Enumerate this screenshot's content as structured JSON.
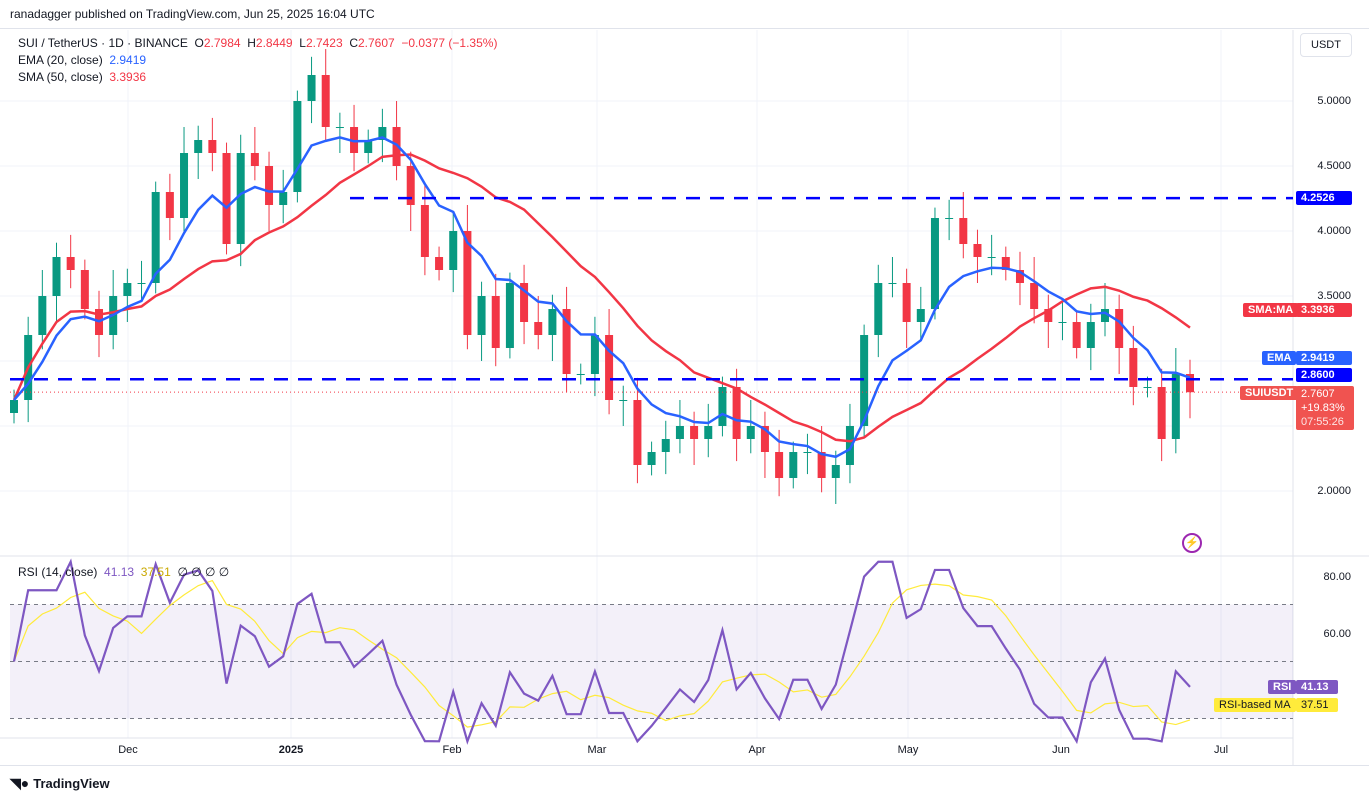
{
  "publisher": "ranadagger published on TradingView.com, Jun 25, 2025 16:04 UTC",
  "symbol": {
    "title": "SUI / TetherUS · 1D · BINANCE",
    "o_label": "O",
    "o": "2.7984",
    "h_label": "H",
    "h": "2.8449",
    "l_label": "L",
    "l": "2.7423",
    "c_label": "C",
    "c": "2.7607",
    "change": "−0.0377 (−1.35%)"
  },
  "indicators": {
    "ema_label": "EMA (20, close)",
    "ema_value": "2.9419",
    "sma_label": "SMA (50, close)",
    "sma_value": "3.3936",
    "rsi_label": "RSI (14, close)",
    "rsi_value": "41.13",
    "rsi_ma_value": "37.51",
    "rsi_extra": "∅ ∅ ∅ ∅"
  },
  "currency_button": "USDT",
  "price_axis": [
    "5.0000",
    "4.5000",
    "4.0000",
    "3.5000",
    "2.0000"
  ],
  "price_axis_values": [
    5.0,
    4.5,
    4.0,
    3.5,
    2.0
  ],
  "tags": {
    "resistance_value": "4.2526",
    "sma_label": "SMA:MA",
    "sma_value": "3.3936",
    "ema_label": "EMA",
    "ema_value": "2.9419",
    "support_value": "2.8600",
    "sym_label": "SUIUSDT",
    "price": "2.7607",
    "pct": "+19.83%",
    "countdown": "07:55:26"
  },
  "rsi_axis": [
    "80.00",
    "60.00"
  ],
  "rsi_tags": {
    "rsi_label": "RSI",
    "rsi_value": "41.13",
    "ma_label": "RSI-based MA",
    "ma_value": "37.51"
  },
  "time_axis": [
    "Dec",
    "2025",
    "Feb",
    "Mar",
    "Apr",
    "May",
    "Jun",
    "Jul"
  ],
  "footer_logo": "TradingView",
  "colors": {
    "up": "#089981",
    "down": "#f23645",
    "ema": "#2962ff",
    "sma": "#f23645",
    "level": "#0000ff",
    "rsi": "#7e57c2",
    "rsi_ma": "#ffeb3b"
  },
  "chart_data": {
    "type": "candlestick",
    "levels": [
      4.2526,
      2.86
    ],
    "ylim": [
      1.6,
      5.45
    ],
    "closes": [
      2.7,
      3.2,
      3.5,
      3.8,
      3.7,
      3.4,
      3.2,
      3.5,
      3.6,
      3.6,
      4.3,
      4.1,
      4.6,
      4.7,
      4.6,
      3.9,
      4.6,
      4.5,
      4.2,
      4.3,
      5.0,
      5.2,
      4.8,
      4.8,
      4.6,
      4.7,
      4.8,
      4.5,
      4.2,
      3.8,
      3.7,
      4.0,
      3.2,
      3.5,
      3.1,
      3.6,
      3.3,
      3.2,
      3.4,
      2.9,
      2.9,
      3.2,
      2.7,
      2.7,
      2.2,
      2.3,
      2.4,
      2.5,
      2.4,
      2.5,
      2.8,
      2.4,
      2.5,
      2.3,
      2.1,
      2.3,
      2.3,
      2.1,
      2.2,
      2.5,
      3.2,
      3.6,
      3.6,
      3.3,
      3.4,
      4.1,
      4.1,
      3.9,
      3.8,
      3.8,
      3.7,
      3.6,
      3.4,
      3.3,
      3.3,
      3.1,
      3.3,
      3.4,
      3.1,
      2.8,
      2.8,
      2.4,
      2.9,
      2.76
    ]
  }
}
